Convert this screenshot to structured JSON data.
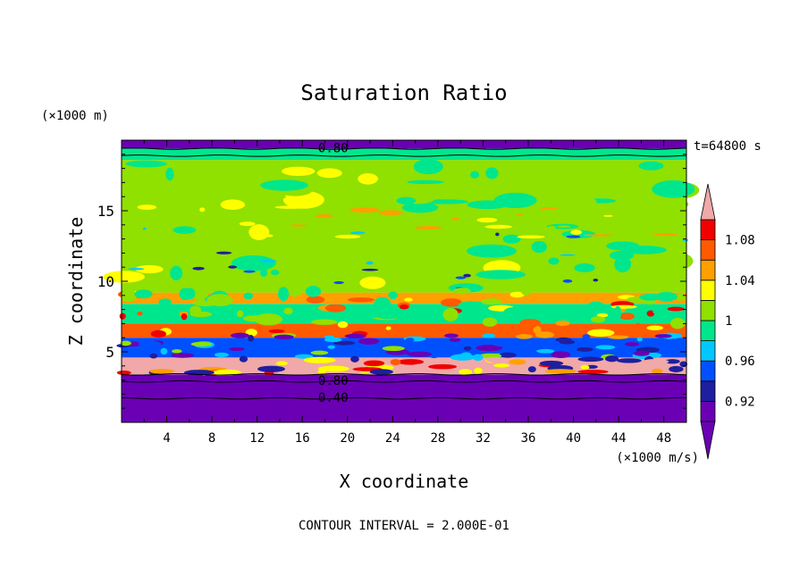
{
  "chart_data": {
    "type": "heatmap",
    "title": "Saturation Ratio",
    "xlabel": "X coordinate",
    "ylabel": "Z coordinate",
    "x_unit": "(×1000 m/s)",
    "y_unit": "(×1000 m)",
    "time_label": "t=64800 s",
    "footer": "CONTOUR INTERVAL = 2.000E-01",
    "xlim": [
      0,
      50
    ],
    "ylim": [
      0,
      20
    ],
    "x_ticks": [
      4,
      8,
      12,
      16,
      20,
      24,
      28,
      32,
      36,
      40,
      44,
      48
    ],
    "y_ticks": [
      5,
      10,
      15
    ],
    "contour_labels": [
      {
        "text": "0.80",
        "x": 17.4,
        "z": 19.4
      },
      {
        "text": "0.80",
        "x": 17.4,
        "z": 2.9
      },
      {
        "text": "0.40",
        "x": 17.4,
        "z": 1.7
      }
    ],
    "colorbar": {
      "levels": [
        0.9,
        0.92,
        0.94,
        0.96,
        0.98,
        1.0,
        1.02,
        1.04,
        1.06,
        1.08,
        1.1
      ],
      "tick_labels": [
        "0.92",
        "0.96",
        "1",
        "1.04",
        "1.08"
      ],
      "tick_values": [
        0.92,
        0.96,
        1.0,
        1.04,
        1.08
      ],
      "colors": [
        "#6a00b4",
        "#1e1ea0",
        "#0050ff",
        "#00c8ff",
        "#00e68c",
        "#90e000",
        "#ffff00",
        "#ffa000",
        "#ff5a00",
        "#f00000"
      ],
      "under_color": "#6a00b4",
      "over_color": "#f0a8a8"
    },
    "layers": [
      {
        "z_range": [
          0,
          3.4
        ],
        "value": 0.5
      },
      {
        "z_range": [
          3.4,
          4.6
        ],
        "value": 1.1
      },
      {
        "z_range": [
          4.6,
          6.0
        ],
        "value": 0.95
      },
      {
        "z_range": [
          6.0,
          7.0
        ],
        "value": 1.06
      },
      {
        "z_range": [
          7.0,
          8.4
        ],
        "value": 0.99
      },
      {
        "z_range": [
          8.4,
          9.2
        ],
        "value": 1.05
      },
      {
        "z_range": [
          9.2,
          18.6
        ],
        "value": 1.0
      },
      {
        "z_range": [
          18.6,
          19.4
        ],
        "value": 0.99
      },
      {
        "z_range": [
          19.4,
          20.0
        ],
        "value": 0.85
      }
    ]
  }
}
